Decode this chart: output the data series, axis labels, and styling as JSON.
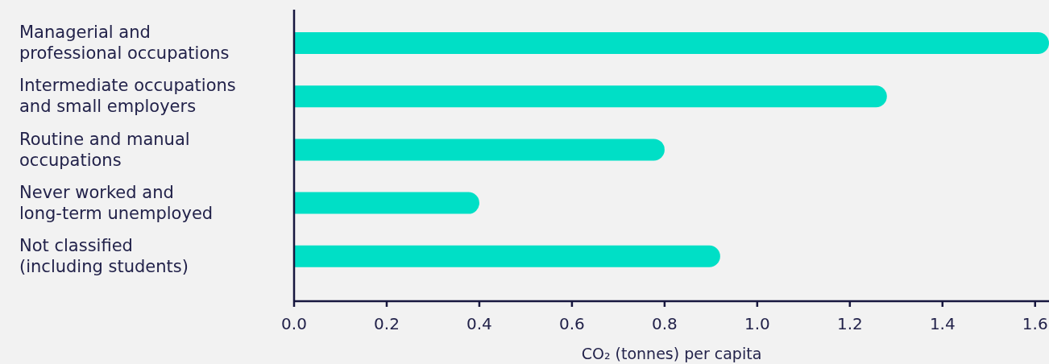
{
  "chart_data": {
    "type": "bar",
    "orientation": "horizontal",
    "categories": [
      "Managerial and\nprofessional occupations",
      "Intermediate occupations\nand small employers",
      "Routine and manual\noccupations",
      "Never worked and\nlong-term unemployed",
      "Not classified\n(including students)"
    ],
    "values": [
      1.63,
      1.28,
      0.8,
      0.4,
      0.92
    ],
    "color": "#00dfc6",
    "xlabel": "CO₂ (tonnes) per capita",
    "xlim": [
      0,
      1.63
    ],
    "xticks": [
      {
        "value": 0,
        "label": "0.0"
      },
      0.2,
      0.4,
      0.6,
      0.8,
      {
        "value": 1,
        "label": "1.0"
      },
      1.2,
      1.4,
      1.6
    ]
  }
}
